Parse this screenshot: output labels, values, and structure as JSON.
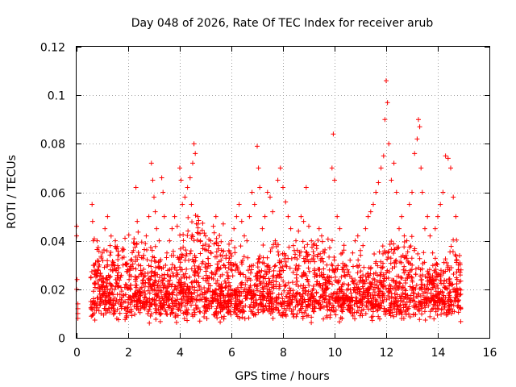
{
  "chart_data": {
    "type": "scatter",
    "title": "Day 048 of 2026, Rate Of TEC Index for receiver arub",
    "xlabel": "GPS time / hours",
    "ylabel": "ROTI / TECUs",
    "xlim": [
      0,
      16
    ],
    "ylim": [
      0,
      0.12
    ],
    "xticks": [
      0,
      2,
      4,
      6,
      8,
      10,
      12,
      14,
      16
    ],
    "xtick_labels": [
      "0",
      "2",
      "4",
      "6",
      "8",
      "10",
      "12",
      "14",
      "16"
    ],
    "yticks": [
      0,
      0.02,
      0.04,
      0.06,
      0.08,
      0.1,
      0.12
    ],
    "ytick_labels": [
      "0",
      "0.02",
      "0.04",
      "0.06",
      "0.08",
      "0.1",
      "0.12"
    ],
    "grid": true,
    "marker": "plus",
    "color": "#ff0000",
    "series": [
      {
        "name": "ROTI",
        "x": [
          0.0,
          0.0,
          0.0,
          0.02,
          0.05,
          0.05,
          0.05,
          0.05,
          0.6,
          0.62,
          0.65,
          0.7,
          0.75,
          0.8,
          0.85,
          0.9,
          1.0,
          1.1,
          1.2,
          1.3,
          1.35,
          1.4,
          1.5,
          1.6,
          1.7,
          1.8,
          1.9,
          2.0,
          2.1,
          2.2,
          2.3,
          2.35,
          2.4,
          2.5,
          2.6,
          2.7,
          2.8,
          2.9,
          2.95,
          3.0,
          3.05,
          3.1,
          3.2,
          3.3,
          3.35,
          3.4,
          3.5,
          3.6,
          3.7,
          3.8,
          3.9,
          4.0,
          4.05,
          4.1,
          4.2,
          4.3,
          4.4,
          4.45,
          4.5,
          4.55,
          4.6,
          4.7,
          4.8,
          4.9,
          5.0,
          5.1,
          5.2,
          5.3,
          5.4,
          5.5,
          5.6,
          5.7,
          5.8,
          5.9,
          6.0,
          6.1,
          6.2,
          6.3,
          6.4,
          6.5,
          6.6,
          6.7,
          6.8,
          6.9,
          7.0,
          7.05,
          7.1,
          7.2,
          7.3,
          7.4,
          7.5,
          7.6,
          7.7,
          7.8,
          7.9,
          8.0,
          8.1,
          8.2,
          8.3,
          8.4,
          8.5,
          8.6,
          8.7,
          8.8,
          8.9,
          9.0,
          9.1,
          9.2,
          9.3,
          9.4,
          9.5,
          9.6,
          9.7,
          9.8,
          9.9,
          9.95,
          10.0,
          10.1,
          10.2,
          10.3,
          10.4,
          10.5,
          10.6,
          10.7,
          10.8,
          10.9,
          11.0,
          11.1,
          11.2,
          11.3,
          11.4,
          11.5,
          11.6,
          11.7,
          11.8,
          11.9,
          11.95,
          12.0,
          12.05,
          12.1,
          12.2,
          12.3,
          12.4,
          12.5,
          12.6,
          12.7,
          12.8,
          12.9,
          13.0,
          13.1,
          13.2,
          13.25,
          13.3,
          13.35,
          13.4,
          13.5,
          13.6,
          13.7,
          13.8,
          13.9,
          14.0,
          14.1,
          14.2,
          14.3,
          14.4,
          14.5,
          14.6,
          14.7,
          14.8,
          14.9
        ],
        "y": [
          0.046,
          0.042,
          0.02,
          0.024,
          0.012,
          0.01,
          0.008,
          0.014,
          0.055,
          0.048,
          0.04,
          0.03,
          0.025,
          0.04,
          0.022,
          0.018,
          0.035,
          0.045,
          0.05,
          0.038,
          0.03,
          0.028,
          0.04,
          0.034,
          0.025,
          0.03,
          0.022,
          0.028,
          0.032,
          0.036,
          0.062,
          0.048,
          0.03,
          0.026,
          0.034,
          0.042,
          0.05,
          0.072,
          0.065,
          0.058,
          0.052,
          0.045,
          0.04,
          0.066,
          0.06,
          0.05,
          0.035,
          0.04,
          0.045,
          0.05,
          0.046,
          0.07,
          0.065,
          0.055,
          0.058,
          0.062,
          0.066,
          0.055,
          0.072,
          0.08,
          0.076,
          0.05,
          0.04,
          0.038,
          0.042,
          0.036,
          0.04,
          0.046,
          0.05,
          0.038,
          0.032,
          0.03,
          0.034,
          0.036,
          0.04,
          0.045,
          0.05,
          0.055,
          0.048,
          0.042,
          0.04,
          0.05,
          0.06,
          0.055,
          0.079,
          0.07,
          0.062,
          0.045,
          0.05,
          0.06,
          0.058,
          0.052,
          0.04,
          0.065,
          0.07,
          0.062,
          0.056,
          0.05,
          0.045,
          0.038,
          0.04,
          0.044,
          0.05,
          0.048,
          0.062,
          0.046,
          0.04,
          0.034,
          0.038,
          0.045,
          0.042,
          0.035,
          0.03,
          0.025,
          0.07,
          0.084,
          0.065,
          0.05,
          0.045,
          0.035,
          0.03,
          0.028,
          0.032,
          0.035,
          0.04,
          0.042,
          0.036,
          0.038,
          0.045,
          0.05,
          0.052,
          0.055,
          0.06,
          0.064,
          0.07,
          0.075,
          0.09,
          0.106,
          0.097,
          0.08,
          0.065,
          0.072,
          0.06,
          0.045,
          0.05,
          0.042,
          0.04,
          0.055,
          0.06,
          0.076,
          0.082,
          0.09,
          0.087,
          0.07,
          0.06,
          0.045,
          0.05,
          0.042,
          0.035,
          0.045,
          0.05,
          0.055,
          0.06,
          0.075,
          0.074,
          0.07,
          0.058,
          0.05,
          0.03,
          0.028
        ]
      }
    ]
  }
}
